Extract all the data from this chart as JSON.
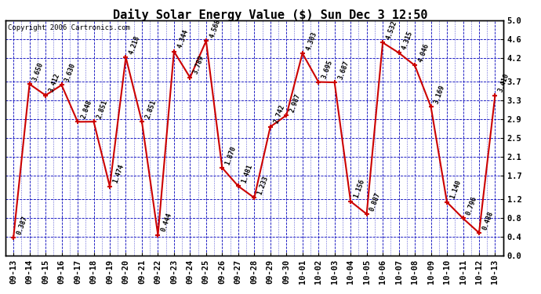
{
  "title": "Daily Solar Energy Value ($) Sun Dec 3 12:50",
  "copyright": "Copyright 2006 Cartronics.com",
  "x_labels": [
    "09-13",
    "09-14",
    "09-15",
    "09-16",
    "09-17",
    "09-18",
    "09-19",
    "09-20",
    "09-21",
    "09-22",
    "09-23",
    "09-24",
    "09-25",
    "09-26",
    "09-27",
    "09-28",
    "09-29",
    "09-30",
    "10-01",
    "10-02",
    "10-03",
    "10-04",
    "10-05",
    "10-06",
    "10-07",
    "10-08",
    "10-09",
    "10-10",
    "10-11",
    "10-12",
    "10-13"
  ],
  "y_values": [
    0.387,
    3.65,
    3.412,
    3.63,
    2.848,
    2.851,
    1.474,
    4.218,
    2.851,
    0.444,
    4.344,
    3.789,
    4.568,
    1.87,
    1.481,
    1.233,
    2.742,
    2.987,
    4.303,
    3.695,
    3.687,
    1.156,
    0.887,
    4.532,
    4.315,
    4.046,
    3.169,
    1.14,
    0.796,
    0.488,
    3.41
  ],
  "point_labels": [
    "0.387",
    "3.650",
    "3.412",
    "3.630",
    "2.848",
    "2.851",
    "1.474",
    "4.218",
    "2.851",
    "0.444",
    "4.344",
    "3.789",
    "4.568",
    "1.870",
    "1.481",
    "1.233",
    "2.742",
    "2.987",
    "4.303",
    "3.695",
    "3.687",
    "1.156",
    "0.887",
    "4.532",
    "4.315",
    "4.046",
    "3.169",
    "1.140",
    "0.796",
    "0.488",
    "3.410"
  ],
  "y_right_ticks": [
    0.0,
    0.4,
    0.8,
    1.2,
    1.7,
    2.1,
    2.5,
    2.9,
    3.3,
    3.7,
    4.2,
    4.6,
    5.0
  ],
  "ylim": [
    0.0,
    5.0
  ],
  "line_color": "#cc0000",
  "marker_color": "#cc0000",
  "bg_color": "#ffffff",
  "grid_color": "#0000bb",
  "title_fontsize": 11,
  "label_fontsize": 6,
  "copyright_fontsize": 6.5,
  "tick_fontsize": 7.5
}
